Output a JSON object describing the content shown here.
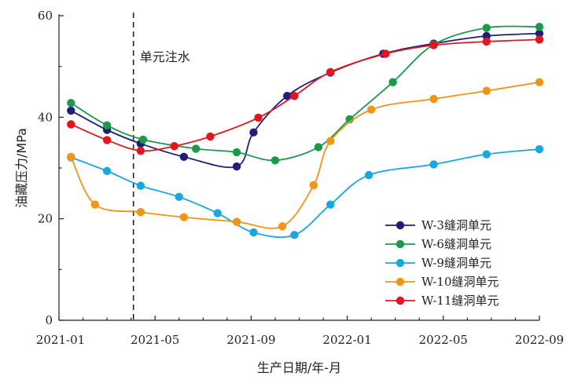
{
  "chart_data": {
    "type": "line",
    "xlabel": "生产日期/年-月",
    "ylabel": "油藏压力/MPa",
    "x_ticks": [
      "2021-01",
      "2021-05",
      "2021-09",
      "2022-01",
      "2022-05",
      "2022-09"
    ],
    "y_ticks": [
      "0",
      "20",
      "40",
      "60"
    ],
    "ylim": [
      0,
      60
    ],
    "xlim": [
      0,
      20
    ],
    "grid": false,
    "legend_position": "bottom-right",
    "annotation": {
      "text": "单元注水",
      "x": 3.1
    },
    "series": [
      {
        "name": "W-3缝洞单元",
        "color": "#1f1f7a",
        "points": [
          [
            0.5,
            41.3
          ],
          [
            2.0,
            37.5
          ],
          [
            3.4,
            34.8
          ],
          [
            5.2,
            32.2
          ],
          [
            7.4,
            30.3
          ],
          [
            8.1,
            37.0
          ],
          [
            9.5,
            44.2
          ],
          [
            11.3,
            48.8
          ],
          [
            13.5,
            52.5
          ],
          [
            15.6,
            54.5
          ],
          [
            17.8,
            56.0
          ],
          [
            20.0,
            56.5
          ]
        ]
      },
      {
        "name": "W-6缝洞单元",
        "color": "#1a9a4a",
        "points": [
          [
            0.5,
            42.8
          ],
          [
            2.0,
            38.4
          ],
          [
            3.5,
            35.6
          ],
          [
            5.7,
            33.8
          ],
          [
            7.4,
            33.1
          ],
          [
            9.0,
            31.5
          ],
          [
            10.8,
            34.1
          ],
          [
            12.1,
            39.6
          ],
          [
            13.9,
            46.9
          ],
          [
            15.6,
            54.3
          ],
          [
            17.8,
            57.6
          ],
          [
            20.0,
            57.8
          ]
        ]
      },
      {
        "name": "W-9缝洞单元",
        "color": "#1aa7e0",
        "points": [
          [
            0.5,
            32.1
          ],
          [
            2.0,
            29.4
          ],
          [
            3.4,
            26.5
          ],
          [
            5.0,
            24.3
          ],
          [
            6.6,
            21.1
          ],
          [
            8.1,
            17.3
          ],
          [
            9.8,
            16.8
          ],
          [
            11.3,
            22.8
          ],
          [
            12.9,
            28.6
          ],
          [
            15.6,
            30.7
          ],
          [
            17.8,
            32.7
          ],
          [
            20.0,
            33.7
          ]
        ]
      },
      {
        "name": "W-10缝洞单元",
        "color": "#f29419",
        "points": [
          [
            0.5,
            32.2
          ],
          [
            1.5,
            22.8
          ],
          [
            3.4,
            21.3
          ],
          [
            5.2,
            20.3
          ],
          [
            7.4,
            19.4
          ],
          [
            9.3,
            18.5
          ],
          [
            10.6,
            26.6
          ],
          [
            11.3,
            35.3
          ],
          [
            13.0,
            41.5
          ],
          [
            15.6,
            43.6
          ],
          [
            17.8,
            45.2
          ],
          [
            20.0,
            46.9
          ]
        ]
      },
      {
        "name": "W-11缝洞单元",
        "color": "#e3161f",
        "points": [
          [
            0.5,
            38.6
          ],
          [
            2.0,
            35.5
          ],
          [
            3.4,
            33.4
          ],
          [
            4.8,
            34.3
          ],
          [
            6.3,
            36.2
          ],
          [
            8.3,
            39.9
          ],
          [
            9.8,
            44.2
          ],
          [
            11.3,
            48.9
          ],
          [
            13.6,
            52.5
          ],
          [
            15.6,
            54.2
          ],
          [
            17.8,
            54.9
          ],
          [
            20.0,
            55.3
          ]
        ]
      }
    ]
  }
}
